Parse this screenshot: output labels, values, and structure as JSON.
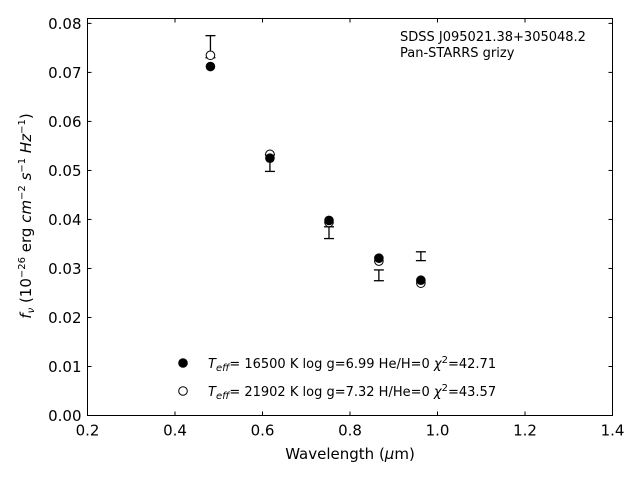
{
  "chart_data": {
    "type": "scatter",
    "title": "",
    "xlabel": "Wavelength (μm)",
    "ylabel": "fν (10⁻²⁶ erg cm⁻² s⁻¹ Hz⁻¹)",
    "xlim": [
      0.2,
      1.4
    ],
    "ylim": [
      0.0,
      0.081
    ],
    "xticks": [
      0.2,
      0.4,
      0.6,
      0.8,
      1.0,
      1.2,
      1.4
    ],
    "xtick_labels": [
      "0.2",
      "0.4",
      "0.6",
      "0.8",
      "1.0",
      "1.2",
      "1.4"
    ],
    "yticks": [
      0.0,
      0.01,
      0.02,
      0.03,
      0.04,
      0.05,
      0.06,
      0.07,
      0.08
    ],
    "ytick_labels": [
      "0.00",
      "0.01",
      "0.02",
      "0.03",
      "0.04",
      "0.05",
      "0.06",
      "0.07",
      "0.08"
    ],
    "grid": false,
    "annotations": [
      "SDSS J095021.38+305048.2",
      "Pan-STARRS grizy"
    ],
    "observed": {
      "x": [
        0.481,
        0.617,
        0.752,
        0.866,
        0.962
      ],
      "y_low": [
        0.073,
        0.0498,
        0.0361,
        0.0275,
        0.0316
      ],
      "y_high": [
        0.0775,
        0.0532,
        0.0385,
        0.0297,
        0.0334
      ]
    },
    "series": [
      {
        "name": "Teff= 16500 K  log g=6.99  He/H=0  χ²=42.71",
        "marker": "filled-circle",
        "x": [
          0.481,
          0.617,
          0.752,
          0.866,
          0.962
        ],
        "y": [
          0.0712,
          0.0525,
          0.0398,
          0.0321,
          0.0276
        ]
      },
      {
        "name": "Teff= 21902 K  log g=7.32  H/He=0  χ²=43.57",
        "marker": "open-circle",
        "x": [
          0.481,
          0.617,
          0.752,
          0.866,
          0.962
        ],
        "y": [
          0.0735,
          0.0533,
          0.0394,
          0.0315,
          0.027
        ]
      }
    ],
    "legend_position": "lower-center",
    "colors": {
      "marker": "#000000",
      "axis": "#000000",
      "background": "#ffffff"
    }
  }
}
